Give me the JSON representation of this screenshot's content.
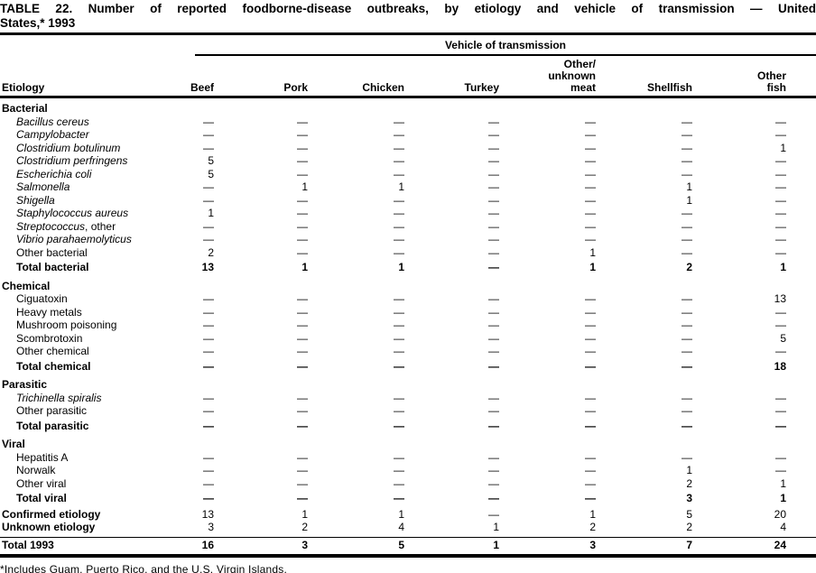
{
  "title": {
    "line1": "TABLE 22. Number of reported foodborne-disease outbreaks, by etiology and vehicle of transmission — United",
    "line2": "States,* 1993"
  },
  "table": {
    "vehicle_of_transmission_label": "Vehicle of transmission",
    "etiology_label": "Etiology",
    "columns": [
      "Beef",
      "Pork",
      "Chicken",
      "Turkey",
      "Other/\nunknown\nmeat",
      "Shellfish",
      "Other\nfish"
    ],
    "empty_marker": "—",
    "sections": [
      {
        "header": "Bacterial",
        "rows": [
          {
            "label": "Bacillus cereus",
            "italic": true,
            "values": [
              "—",
              "—",
              "—",
              "—",
              "—",
              "—",
              "—"
            ]
          },
          {
            "label": "Campylobacter",
            "italic": true,
            "values": [
              "—",
              "—",
              "—",
              "—",
              "—",
              "—",
              "—"
            ]
          },
          {
            "label": "Clostridium botulinum",
            "italic": true,
            "values": [
              "—",
              "—",
              "—",
              "—",
              "—",
              "—",
              "1"
            ]
          },
          {
            "label": "Clostridium perfringens",
            "italic": true,
            "values": [
              "5",
              "—",
              "—",
              "—",
              "—",
              "—",
              "—"
            ]
          },
          {
            "label": "Escherichia coli",
            "italic": true,
            "values": [
              "5",
              "—",
              "—",
              "—",
              "—",
              "—",
              "—"
            ]
          },
          {
            "label": "Salmonella",
            "italic": true,
            "values": [
              "—",
              "1",
              "1",
              "—",
              "—",
              "1",
              "—"
            ]
          },
          {
            "label": "Shigella",
            "italic": true,
            "values": [
              "—",
              "—",
              "—",
              "—",
              "—",
              "1",
              "—"
            ]
          },
          {
            "label": "Staphylococcus aureus",
            "italic": true,
            "values": [
              "1",
              "—",
              "—",
              "—",
              "—",
              "—",
              "—"
            ]
          },
          {
            "label": "Streptococcus",
            "suffix": ", other",
            "italic": true,
            "values": [
              "—",
              "—",
              "—",
              "—",
              "—",
              "—",
              "—"
            ]
          },
          {
            "label": "Vibrio parahaemolyticus",
            "italic": true,
            "values": [
              "—",
              "—",
              "—",
              "—",
              "—",
              "—",
              "—"
            ]
          },
          {
            "label": "Other bacterial",
            "italic": false,
            "values": [
              "2",
              "—",
              "—",
              "—",
              "1",
              "—",
              "—"
            ]
          },
          {
            "label": "Total bacterial",
            "italic": false,
            "total": true,
            "values": [
              "13",
              "1",
              "1",
              "—",
              "1",
              "2",
              "1"
            ]
          }
        ]
      },
      {
        "header": "Chemical",
        "rows": [
          {
            "label": "Ciguatoxin",
            "italic": false,
            "values": [
              "—",
              "—",
              "—",
              "—",
              "—",
              "—",
              "13"
            ]
          },
          {
            "label": "Heavy metals",
            "italic": false,
            "values": [
              "—",
              "—",
              "—",
              "—",
              "—",
              "—",
              "—"
            ]
          },
          {
            "label": "Mushroom poisoning",
            "italic": false,
            "values": [
              "—",
              "—",
              "—",
              "—",
              "—",
              "—",
              "—"
            ]
          },
          {
            "label": "Scombrotoxin",
            "italic": false,
            "values": [
              "—",
              "—",
              "—",
              "—",
              "—",
              "—",
              "5"
            ]
          },
          {
            "label": "Other chemical",
            "italic": false,
            "values": [
              "—",
              "—",
              "—",
              "—",
              "—",
              "—",
              "—"
            ]
          },
          {
            "label": "Total chemical",
            "italic": false,
            "total": true,
            "values": [
              "—",
              "—",
              "—",
              "—",
              "—",
              "—",
              "18"
            ]
          }
        ]
      },
      {
        "header": "Parasitic",
        "rows": [
          {
            "label": "Trichinella spiralis",
            "italic": true,
            "values": [
              "—",
              "—",
              "—",
              "—",
              "—",
              "—",
              "—"
            ]
          },
          {
            "label": "Other parasitic",
            "italic": false,
            "values": [
              "—",
              "—",
              "—",
              "—",
              "—",
              "—",
              "—"
            ]
          },
          {
            "label": "Total parasitic",
            "italic": false,
            "total": true,
            "values": [
              "—",
              "—",
              "—",
              "—",
              "—",
              "—",
              "—"
            ]
          }
        ]
      },
      {
        "header": "Viral",
        "rows": [
          {
            "label": "Hepatitis A",
            "italic": false,
            "values": [
              "—",
              "—",
              "—",
              "—",
              "—",
              "—",
              "—"
            ]
          },
          {
            "label": "Norwalk",
            "italic": false,
            "values": [
              "—",
              "—",
              "—",
              "—",
              "—",
              "1",
              "—"
            ]
          },
          {
            "label": "Other viral",
            "italic": false,
            "values": [
              "—",
              "—",
              "—",
              "—",
              "—",
              "2",
              "1"
            ]
          },
          {
            "label": "Total viral",
            "italic": false,
            "total": true,
            "values": [
              "—",
              "—",
              "—",
              "—",
              "—",
              "3",
              "1"
            ]
          }
        ]
      }
    ],
    "summary_rows": [
      {
        "label": "Confirmed etiology",
        "values": [
          "13",
          "1",
          "1",
          "—",
          "1",
          "5",
          "20"
        ]
      },
      {
        "label": "Unknown etiology",
        "values": [
          "3",
          "2",
          "4",
          "1",
          "2",
          "2",
          "4"
        ]
      }
    ],
    "grand_total": {
      "label": "Total 1993",
      "values": [
        "16",
        "3",
        "5",
        "1",
        "3",
        "7",
        "24"
      ]
    }
  },
  "footnote": "*Includes Guam, Puerto Rico, and the U.S. Virgin Islands."
}
